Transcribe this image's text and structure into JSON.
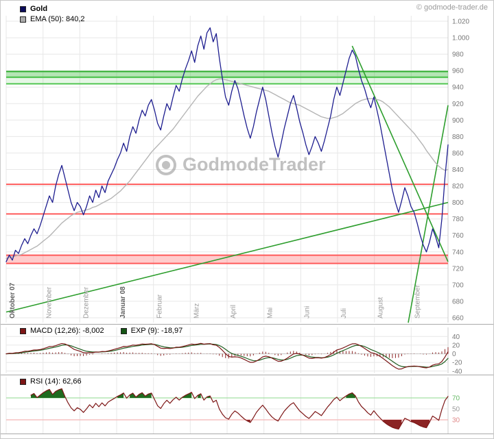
{
  "header": {
    "copyright": "© godmode-trader.de"
  },
  "colors": {
    "gold_line": "#1d1d8f",
    "ema_line": "#b5b5b5",
    "grid": "#e7e7e7",
    "panel_border": "#a9a9a9",
    "trendline": "#2d9e2d",
    "macd_line": "#7a1616",
    "macd_signal": "#1e5c1e",
    "macd_hist": "#8b2323",
    "rsi_line": "#7d1616",
    "rsi_over_fill": "#1f6b1f",
    "rsi_under_fill": "#8b2323",
    "axis_text": "#777777",
    "month_text": "#9a9a9a",
    "month_text_bold": "#5f5f5f",
    "watermark": "#8f8f8f"
  },
  "main": {
    "legend": [
      {
        "swatch": "#0c0c5a",
        "label": "Gold"
      },
      {
        "swatch": "#a9a9a9",
        "label": "EMA (50): 840,2"
      }
    ],
    "watermark": "GodmodeTrader"
  },
  "macd_panel": {
    "legend": [
      {
        "swatch": "#7d1616",
        "label": "MACD (12,26): -8,002"
      },
      {
        "swatch": "#155515",
        "label": "EXP (9): -18,97"
      }
    ]
  },
  "rsi_panel": {
    "legend": [
      {
        "swatch": "#7d1616",
        "label": "RSI (14): 62,66"
      }
    ]
  },
  "chart_data": [
    {
      "type": "line",
      "title": "Gold daily price with EMA(50), Oktober 07 - September 08",
      "ylim": [
        660,
        1020
      ],
      "y_ticks": {
        "values": [
          1020,
          1000,
          980,
          960,
          940,
          920,
          900,
          880,
          860,
          840,
          820,
          800,
          780,
          760,
          740,
          720,
          700,
          680,
          660
        ],
        "labels": [
          "1.020",
          "1.000",
          "980",
          "960",
          "940",
          "920",
          "900",
          "880",
          "860",
          "840",
          "820",
          "800",
          "780",
          "760",
          "740",
          "720",
          "700",
          "680",
          "660"
        ]
      },
      "x_months": [
        {
          "label": "Oktober 07",
          "bold": true
        },
        {
          "label": "November"
        },
        {
          "label": "Dezember"
        },
        {
          "label": "Januar 08",
          "bold": true
        },
        {
          "label": "Februar"
        },
        {
          "label": "März"
        },
        {
          "label": "April"
        },
        {
          "label": "Mai"
        },
        {
          "label": "Juni"
        },
        {
          "label": "Juli"
        },
        {
          "label": "August"
        },
        {
          "label": "September"
        }
      ],
      "series": [
        {
          "name": "Gold",
          "final": 870,
          "values": [
            728,
            736,
            730,
            742,
            738,
            748,
            756,
            750,
            760,
            768,
            762,
            772,
            784,
            796,
            808,
            800,
            820,
            834,
            845,
            830,
            815,
            800,
            790,
            800,
            795,
            785,
            795,
            808,
            800,
            815,
            806,
            820,
            812,
            826,
            834,
            842,
            852,
            860,
            872,
            862,
            880,
            892,
            884,
            900,
            912,
            905,
            918,
            925,
            912,
            896,
            888,
            905,
            920,
            912,
            928,
            942,
            935,
            950,
            962,
            972,
            984,
            970,
            990,
            1002,
            986,
            1006,
            1012,
            995,
            1005,
            975,
            950,
            928,
            918,
            935,
            948,
            938,
            922,
            905,
            890,
            878,
            892,
            910,
            925,
            940,
            925,
            905,
            885,
            868,
            855,
            872,
            890,
            905,
            920,
            930,
            915,
            898,
            885,
            870,
            858,
            868,
            880,
            872,
            862,
            875,
            890,
            905,
            925,
            940,
            930,
            945,
            960,
            975,
            985,
            978,
            962,
            948,
            938,
            925,
            915,
            928,
            912,
            895,
            875,
            855,
            835,
            815,
            800,
            788,
            802,
            818,
            808,
            795,
            788,
            775,
            760,
            748,
            740,
            752,
            768,
            758,
            745,
            780,
            830,
            870
          ]
        },
        {
          "name": "EMA (50)",
          "final": 840.2,
          "values": [
            732,
            733,
            734,
            735,
            736,
            737,
            739,
            741,
            743,
            745,
            747,
            750,
            753,
            756,
            759,
            763,
            767,
            771,
            775,
            778,
            781,
            784,
            786,
            788,
            789,
            790,
            791,
            792,
            794,
            795,
            797,
            799,
            801,
            803,
            805,
            808,
            811,
            814,
            818,
            822,
            826,
            831,
            836,
            841,
            846,
            851,
            856,
            861,
            865,
            869,
            873,
            877,
            881,
            885,
            889,
            894,
            899,
            904,
            909,
            914,
            919,
            924,
            929,
            933,
            937,
            941,
            944,
            947,
            949,
            950,
            950,
            949,
            948,
            947,
            946,
            945,
            944,
            943,
            942,
            941,
            940,
            939,
            938,
            937,
            936,
            935,
            933,
            931,
            929,
            927,
            925,
            923,
            921,
            920,
            919,
            918,
            916,
            914,
            912,
            910,
            908,
            906,
            904,
            903,
            902,
            902,
            903,
            904,
            906,
            908,
            911,
            914,
            917,
            920,
            922,
            924,
            925,
            926,
            926,
            926,
            925,
            924,
            922,
            919,
            916,
            912,
            908,
            904,
            900,
            896,
            892,
            888,
            884,
            879,
            874,
            869,
            863,
            858,
            853,
            848,
            844,
            841,
            839,
            840
          ]
        }
      ],
      "levels": [
        {
          "band": true,
          "from": 952,
          "to": 959,
          "fill": "rgba(70,190,70,0.40)",
          "edge": "#2fae2f",
          "name": "resistance-zone-strong"
        },
        {
          "band": true,
          "from": 944,
          "to": 952,
          "fill": "rgba(70,190,70,0.14)",
          "edge": "#53c653",
          "name": "resistance-zone-light"
        },
        {
          "at": 822,
          "color": "#ff5a5a",
          "name": "support-line-822"
        },
        {
          "at": 786,
          "color": "#ff5a5a",
          "name": "support-line-786"
        },
        {
          "band": true,
          "from": 726,
          "to": 736,
          "fill": "rgba(255,110,110,0.35)",
          "edge": "#ff5a5a",
          "name": "support-zone-730"
        }
      ],
      "trendlines": [
        {
          "x1": 0.0,
          "p1": 667,
          "x2": 1.0,
          "p2": 800
        },
        {
          "x1": 0.783,
          "p1": 990,
          "x2": 1.0,
          "p2": 728
        },
        {
          "x1": 0.91,
          "p1": 654,
          "x2": 1.0,
          "p2": 918
        }
      ]
    },
    {
      "type": "line",
      "title": "MACD (12,26) with EXP(9) signal and histogram",
      "params": {
        "fast": 12,
        "slow": 26,
        "signal": 9
      },
      "final": {
        "macd": -8.002,
        "signal": -18.97
      },
      "ylim": [
        -45,
        50
      ],
      "y_ticks": {
        "values": [
          40,
          20,
          0,
          -20,
          -40
        ],
        "labels": [
          "40",
          "20",
          "0",
          "-20",
          "-40"
        ]
      }
    },
    {
      "type": "line",
      "title": "RSI (14)",
      "params": {
        "period": 14
      },
      "final": 62.66,
      "ylim": [
        5,
        100
      ],
      "y_ticks": [
        {
          "value": 70,
          "label": "70",
          "text_color": "#66b966",
          "line_color": "#a5e0a5"
        },
        {
          "value": 50,
          "label": "50",
          "text_color": "#9a9a9a",
          "line_color": "#e7e7e7"
        },
        {
          "value": 30,
          "label": "30",
          "text_color": "#e08a8a",
          "line_color": "#f4b5b5"
        }
      ]
    }
  ]
}
